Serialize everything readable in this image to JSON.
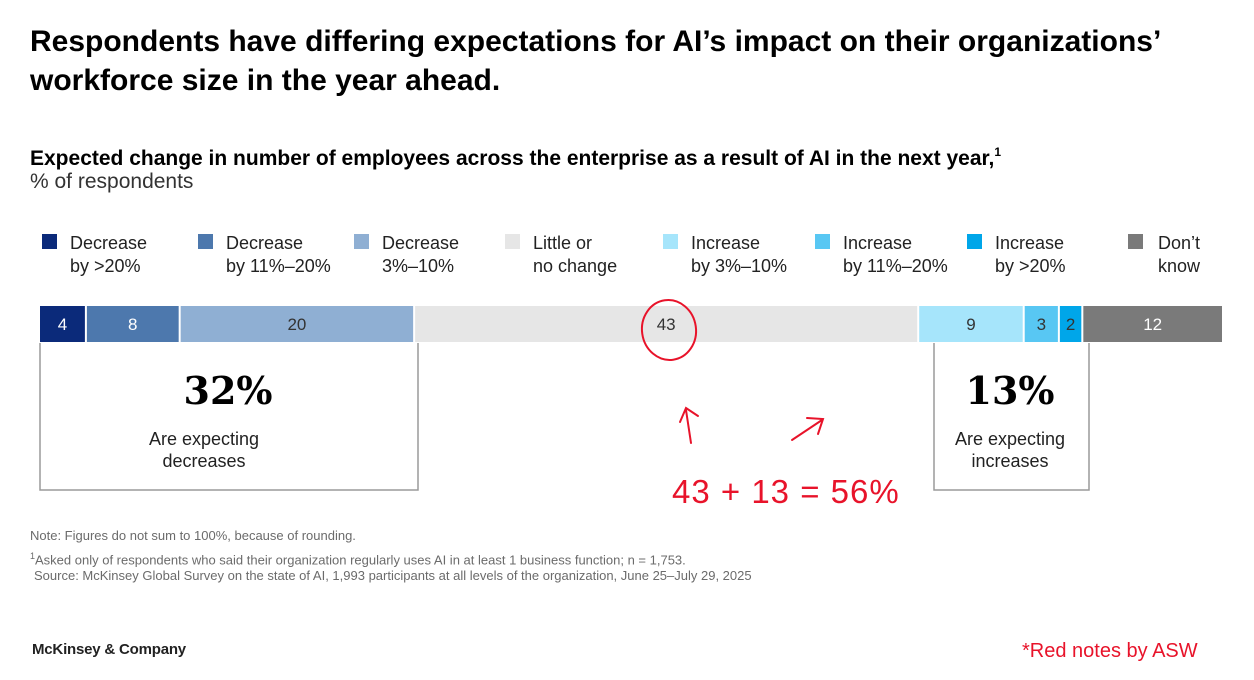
{
  "title": "Respondents have differing expectations for AI’s impact on their organizations’ workforce size in the year ahead.",
  "subtitle": "Expected change in number of employees across the enterprise as a result of AI in the next year,",
  "subtitle_sup": "1",
  "unit": "% of respondents",
  "colors": {
    "decrease_20": "#0b2a7a",
    "decrease_11_20": "#4d78ad",
    "decrease_3_10": "#8fafd3",
    "little_change": "#e6e6e6",
    "increase_3_10": "#a6e5fb",
    "increase_11_20": "#58c7f3",
    "increase_20": "#00a6e9",
    "dont_know": "#7a7a7a",
    "annotation_red": "#e8132a"
  },
  "legend": [
    {
      "line1": "Decrease",
      "line2": "by >20%",
      "color": "#0b2a7a"
    },
    {
      "line1": "Decrease",
      "line2": "by 11%–20%",
      "color": "#4d78ad"
    },
    {
      "line1": "Decrease",
      "line2": "3%–10%",
      "color": "#8fafd3"
    },
    {
      "line1": "Little or",
      "line2": "no change",
      "color": "#e6e6e6"
    },
    {
      "line1": "Increase",
      "line2": "by 3%–10%",
      "color": "#a6e5fb"
    },
    {
      "line1": "Increase",
      "line2": "by 11%–20%",
      "color": "#58c7f3"
    },
    {
      "line1": "Increase",
      "line2": "by >20%",
      "color": "#00a6e9"
    },
    {
      "line1": "Don’t",
      "line2": "know",
      "color": "#7a7a7a"
    }
  ],
  "chart_data": {
    "type": "bar",
    "orientation": "horizontal-stacked",
    "categories": [
      "Decrease by >20%",
      "Decrease by 11%–20%",
      "Decrease 3%–10%",
      "Little or no change",
      "Increase by 3%–10%",
      "Increase by 11%–20%",
      "Increase by >20%",
      "Don’t know"
    ],
    "values": [
      4,
      8,
      20,
      43,
      9,
      3,
      2,
      12
    ],
    "labels": [
      "4",
      "8",
      "20",
      "43",
      "9",
      "3",
      "2",
      "12"
    ],
    "legend_position": "top"
  },
  "brackets": {
    "decrease": {
      "value": "32%",
      "line1": "Are expecting",
      "line2": "decreases"
    },
    "increase": {
      "value": "13%",
      "line1": "Are expecting",
      "line2": "increases"
    }
  },
  "notes": {
    "note": "Note: Figures do not sum to 100%, because of rounding.",
    "footnote_marker": "1",
    "footnote": "Asked only of respondents who said their organization regularly uses AI in at least 1 business function; n = 1,753.",
    "source": "Source: McKinsey Global Survey on the state of AI, 1,993 participants at all levels of the organization, June 25–July 29, 2025"
  },
  "brand": "McKinsey & Company",
  "annotations": {
    "equation": "43 + 13 = 56%",
    "credit": "*Red notes by ASW"
  }
}
